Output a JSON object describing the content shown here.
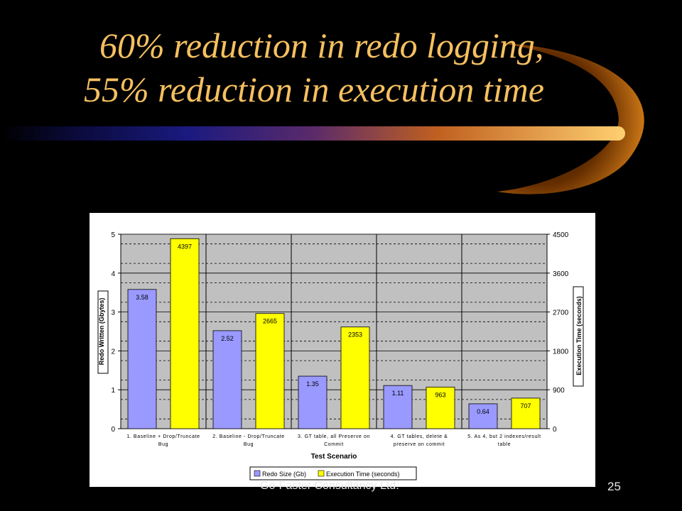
{
  "slide": {
    "title_line1": "60% reduction in redo logging,",
    "title_line2": "55% reduction in execution time",
    "footer": "Go-Faster Consultancy Ltd.",
    "page_number": "25",
    "title_color": "#f5c060"
  },
  "chart_data": {
    "type": "bar",
    "xlabel": "Test Scenario",
    "ylabel": "Redo Written (Gbytes)",
    "y2label": "Execution Time (seconds)",
    "ylim": [
      0,
      5
    ],
    "y2lim": [
      0,
      4500
    ],
    "yticks": [
      "0",
      "1",
      "2",
      "3",
      "4",
      "5"
    ],
    "y2ticks": [
      "0",
      "900",
      "1800",
      "2700",
      "3600",
      "4500"
    ],
    "categories": [
      [
        "1. Baseline + Drop/Truncate",
        "Bug"
      ],
      [
        "2. Baseline - Drop/Truncate",
        "Bug"
      ],
      [
        "3. GT table, all Preserve on",
        "Commit"
      ],
      [
        "4. GT tables, delete &",
        "preserve on commit"
      ],
      [
        "5. As 4, but 2 indexes/result",
        "table"
      ]
    ],
    "series": [
      {
        "name": "Redo Size (Gb)",
        "axis": "left",
        "color": "#9999ff",
        "values": [
          3.58,
          2.52,
          1.35,
          1.11,
          0.64
        ],
        "labels": [
          "3.58",
          "2.52",
          "1.35",
          "1.11",
          "0.64"
        ]
      },
      {
        "name": "Execution Time (seconds)",
        "axis": "right",
        "color": "#ffff00",
        "values": [
          4397,
          2665,
          2353,
          963,
          707
        ],
        "labels": [
          "4397",
          "2665",
          "2353",
          "963",
          "707"
        ]
      }
    ],
    "grid": true,
    "legend": "bottom"
  }
}
